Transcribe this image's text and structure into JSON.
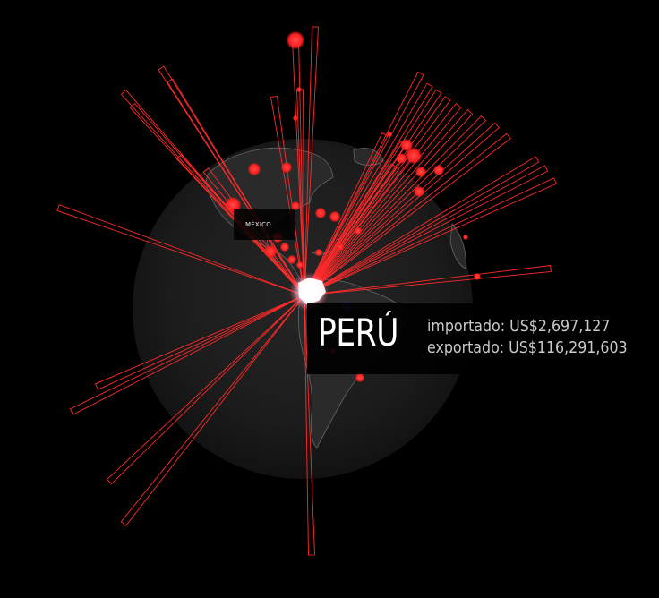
{
  "map": {
    "labels": {
      "mexico": "MÉXICO"
    },
    "selected_country": {
      "name": "PERÚ",
      "imported": "importado: US$2,697,127",
      "exported": "exportado: US$116,291,603"
    },
    "colors": {
      "background": "#000000",
      "globe": "#1a1a1a",
      "trade_line": "#ff2a2a",
      "trade_point": "#ff2e2e",
      "origin_glow": "#ffffff",
      "import_marker": "#5a2cff"
    }
  }
}
